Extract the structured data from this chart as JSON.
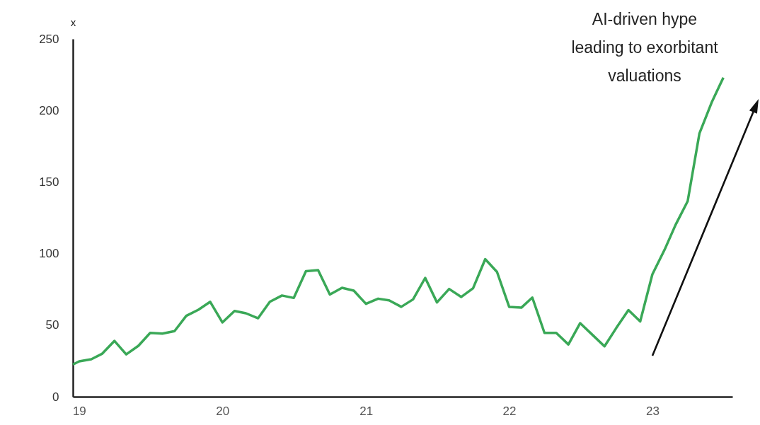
{
  "chart_data": {
    "type": "line",
    "ylabel": "x",
    "x": [
      "2018-12-16",
      "2019-01",
      "2019-02",
      "2019-03",
      "2019-04",
      "2019-05",
      "2019-06",
      "2019-07",
      "2019-08",
      "2019-09",
      "2019-10",
      "2019-11",
      "2019-12",
      "2020-01",
      "2020-02",
      "2020-03",
      "2020-04",
      "2020-05",
      "2020-06",
      "2020-07",
      "2020-08",
      "2020-09",
      "2020-10",
      "2020-11",
      "2020-12",
      "2021-01",
      "2021-02",
      "2021-03",
      "2021-04",
      "2021-05",
      "2021-06",
      "2021-07",
      "2021-08",
      "2021-09",
      "2021-10",
      "2021-11",
      "2021-12",
      "2022-01",
      "2022-02",
      "2022-03",
      "2022-04",
      "2022-05",
      "2022-06",
      "2022-07",
      "2022-08",
      "2022-09",
      "2022-10",
      "2022-11",
      "2022-12",
      "2023-01",
      "2023-02",
      "2023-03",
      "2023-04",
      "2023-05",
      "2023-06",
      "2023-07"
    ],
    "series": [
      {
        "color": "#3aa857",
        "values": [
          22.5,
          24.7,
          26.2,
          30.1,
          39.0,
          29.6,
          35.6,
          44.6,
          44.1,
          45.8,
          56.5,
          60.8,
          66.3,
          51.9,
          59.9,
          58.3,
          54.8,
          66.3,
          70.7,
          69.0,
          87.7,
          88.4,
          71.4,
          76.1,
          74.1,
          64.9,
          68.5,
          67.3,
          62.8,
          68.0,
          83.0,
          65.9,
          75.3,
          69.7,
          75.8,
          96.1,
          87.2,
          62.8,
          62.2,
          69.3,
          44.6,
          44.6,
          36.5,
          51.4,
          43.3,
          35.2,
          48.0,
          60.5,
          52.6,
          85.5,
          102.6,
          120,
          136.6,
          184,
          205.5,
          223
        ]
      }
    ],
    "xlim": [
      "2018-12-16",
      "2023-07-24"
    ],
    "xticks": [
      {
        "value": "2019-01",
        "label": "19"
      },
      {
        "value": "2020-01",
        "label": "20"
      },
      {
        "value": "2021-01",
        "label": "21"
      },
      {
        "value": "2022-01",
        "label": "22"
      },
      {
        "value": "2023-01",
        "label": "23"
      }
    ],
    "ylim": [
      0,
      250
    ],
    "yticks": [
      0,
      50,
      100,
      150,
      200,
      250
    ],
    "grid": false,
    "annotations": [
      "AI-driven hype\nleading to exorbitant\nvaluations"
    ]
  }
}
